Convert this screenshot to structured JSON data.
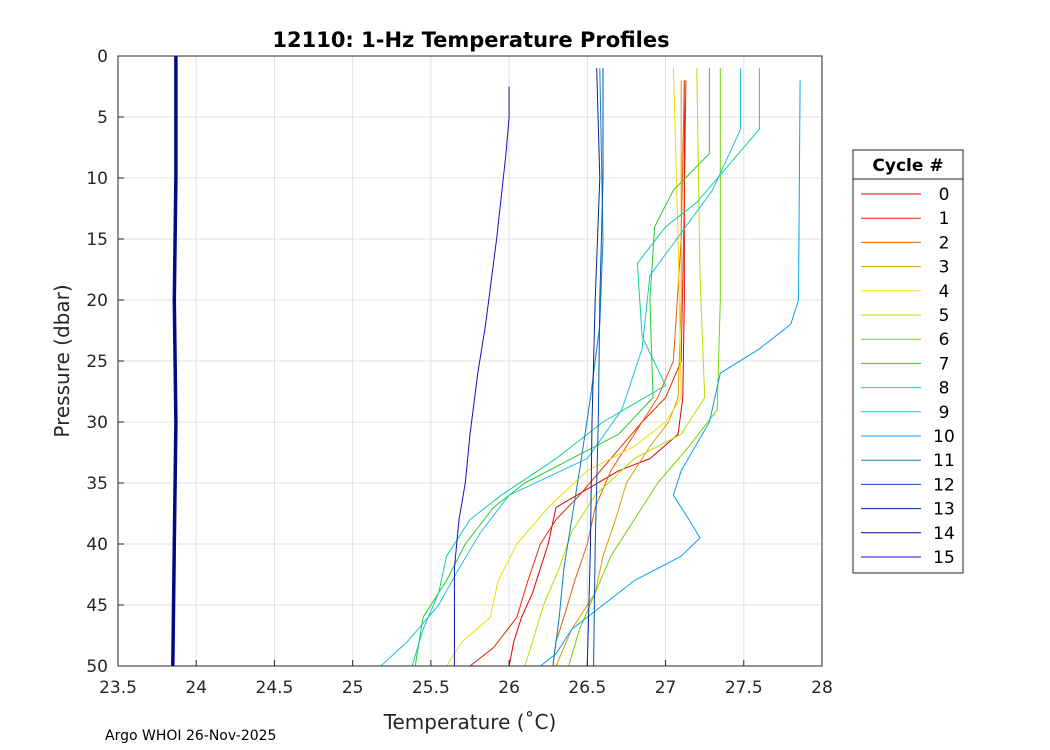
{
  "chart_data": {
    "type": "line",
    "title": "12110: 1-Hz Temperature Profiles",
    "xlabel": "Temperature (˚C)",
    "ylabel": "Pressure (dbar)",
    "xlim": [
      23.5,
      28
    ],
    "ylim": [
      0,
      50
    ],
    "y_reversed": true,
    "grid": true,
    "x_ticks": [
      "23.5",
      "24",
      "24.5",
      "25",
      "25.5",
      "26",
      "26.5",
      "27",
      "27.5",
      "28"
    ],
    "y_ticks": [
      "0",
      "5",
      "10",
      "15",
      "20",
      "25",
      "30",
      "35",
      "40",
      "45",
      "50"
    ],
    "legend": {
      "title": "Cycle #",
      "placement": "right",
      "entries": [
        "0",
        "1",
        "2",
        "3",
        "4",
        "5",
        "6",
        "7",
        "8",
        "9",
        "10",
        "11",
        "12",
        "13",
        "14",
        "15"
      ]
    },
    "credit": "Argo WHOI 26-Nov-2025",
    "series": [
      {
        "name": "0",
        "color": "#dd0000",
        "points": [
          [
            27.12,
            2
          ],
          [
            27.12,
            10
          ],
          [
            27.12,
            20
          ],
          [
            27.11,
            28
          ],
          [
            27.08,
            31
          ],
          [
            26.9,
            33
          ],
          [
            26.7,
            34
          ],
          [
            26.5,
            35.5
          ],
          [
            26.3,
            37
          ],
          [
            26.25,
            40
          ],
          [
            26.2,
            42
          ],
          [
            26.15,
            44
          ],
          [
            26.08,
            46
          ],
          [
            26.03,
            48
          ],
          [
            26.0,
            50
          ]
        ]
      },
      {
        "name": "1",
        "color": "#e02d00",
        "points": [
          [
            27.13,
            2
          ],
          [
            27.12,
            12
          ],
          [
            27.1,
            25
          ],
          [
            27.0,
            28
          ],
          [
            26.85,
            30
          ],
          [
            26.65,
            33
          ],
          [
            26.45,
            36
          ],
          [
            26.3,
            38
          ],
          [
            26.2,
            40
          ],
          [
            26.12,
            43
          ],
          [
            26.05,
            46
          ],
          [
            25.9,
            48.5
          ],
          [
            25.75,
            50
          ]
        ]
      },
      {
        "name": "2",
        "color": "#e35f00",
        "points": [
          [
            27.12,
            2
          ],
          [
            27.1,
            15
          ],
          [
            27.05,
            25
          ],
          [
            26.95,
            28
          ],
          [
            26.8,
            31
          ],
          [
            26.65,
            34
          ],
          [
            26.55,
            37
          ],
          [
            26.5,
            40
          ],
          [
            26.42,
            43
          ],
          [
            26.35,
            46
          ],
          [
            26.3,
            48
          ],
          [
            26.28,
            50
          ]
        ]
      },
      {
        "name": "3",
        "color": "#e79a00",
        "points": [
          [
            27.1,
            2
          ],
          [
            27.1,
            20
          ],
          [
            27.08,
            28
          ],
          [
            27.02,
            30
          ],
          [
            26.9,
            32
          ],
          [
            26.75,
            35
          ],
          [
            26.68,
            38
          ],
          [
            26.6,
            41
          ],
          [
            26.55,
            44
          ],
          [
            26.4,
            47
          ],
          [
            26.3,
            50
          ]
        ]
      },
      {
        "name": "4",
        "color": "#eedd00",
        "points": [
          [
            27.05,
            1
          ],
          [
            27.08,
            15
          ],
          [
            27.1,
            28
          ],
          [
            27.0,
            30
          ],
          [
            26.8,
            32
          ],
          [
            26.5,
            34
          ],
          [
            26.25,
            37
          ],
          [
            26.05,
            40
          ],
          [
            25.93,
            43
          ],
          [
            25.88,
            46
          ],
          [
            25.7,
            48
          ],
          [
            25.6,
            50
          ]
        ]
      },
      {
        "name": "5",
        "color": "#b5e000",
        "points": [
          [
            27.2,
            1
          ],
          [
            27.22,
            18
          ],
          [
            27.25,
            28
          ],
          [
            27.1,
            31
          ],
          [
            26.8,
            33
          ],
          [
            26.55,
            36
          ],
          [
            26.4,
            39
          ],
          [
            26.32,
            42
          ],
          [
            26.22,
            45
          ],
          [
            26.15,
            48
          ],
          [
            26.1,
            50
          ]
        ]
      },
      {
        "name": "6",
        "color": "#6ed800",
        "points": [
          [
            27.35,
            1
          ],
          [
            27.35,
            20
          ],
          [
            27.33,
            29
          ],
          [
            27.15,
            32
          ],
          [
            26.95,
            35
          ],
          [
            26.8,
            38
          ],
          [
            26.65,
            41
          ],
          [
            26.55,
            44
          ],
          [
            26.45,
            47
          ],
          [
            26.38,
            50
          ]
        ]
      },
      {
        "name": "7",
        "color": "#25cc30",
        "points": [
          [
            27.28,
            1
          ],
          [
            27.28,
            8
          ],
          [
            27.05,
            11
          ],
          [
            26.93,
            14
          ],
          [
            26.9,
            20
          ],
          [
            26.92,
            28
          ],
          [
            26.7,
            31
          ],
          [
            26.4,
            33
          ],
          [
            26.1,
            35
          ],
          [
            25.9,
            37
          ],
          [
            25.72,
            40
          ],
          [
            25.6,
            43
          ],
          [
            25.45,
            46
          ],
          [
            25.4,
            50
          ]
        ]
      },
      {
        "name": "8",
        "color": "#10d0a0",
        "points": [
          [
            27.6,
            1
          ],
          [
            27.6,
            6
          ],
          [
            27.4,
            9
          ],
          [
            27.2,
            12
          ],
          [
            27.0,
            14
          ],
          [
            26.82,
            17
          ],
          [
            26.85,
            23
          ],
          [
            27.0,
            27
          ],
          [
            26.6,
            30
          ],
          [
            26.3,
            33
          ],
          [
            25.95,
            36
          ],
          [
            25.75,
            38
          ],
          [
            25.6,
            41
          ],
          [
            25.55,
            44
          ],
          [
            25.45,
            47
          ],
          [
            25.38,
            50
          ]
        ]
      },
      {
        "name": "9",
        "color": "#20c0e0",
        "points": [
          [
            27.48,
            1
          ],
          [
            27.48,
            6
          ],
          [
            27.3,
            11
          ],
          [
            26.9,
            18
          ],
          [
            26.85,
            24
          ],
          [
            26.72,
            29
          ],
          [
            26.5,
            33
          ],
          [
            26.0,
            36
          ],
          [
            25.82,
            39
          ],
          [
            25.68,
            42
          ],
          [
            25.55,
            45
          ],
          [
            25.35,
            48
          ],
          [
            25.18,
            50
          ]
        ]
      },
      {
        "name": "10",
        "color": "#0aa0e8",
        "points": [
          [
            27.86,
            2
          ],
          [
            27.85,
            20
          ],
          [
            27.8,
            22
          ],
          [
            27.6,
            24
          ],
          [
            27.35,
            26
          ],
          [
            27.28,
            30
          ],
          [
            27.1,
            34
          ],
          [
            27.05,
            36
          ],
          [
            27.15,
            38
          ],
          [
            27.22,
            39.5
          ],
          [
            27.1,
            41
          ],
          [
            26.8,
            43
          ],
          [
            26.6,
            45
          ],
          [
            26.4,
            47
          ],
          [
            26.3,
            49
          ],
          [
            26.2,
            50
          ]
        ]
      },
      {
        "name": "11",
        "color": "#0a80c0",
        "points": [
          [
            26.58,
            1
          ],
          [
            26.6,
            15
          ],
          [
            26.58,
            22
          ],
          [
            26.52,
            28
          ],
          [
            26.45,
            34
          ],
          [
            26.4,
            38
          ],
          [
            26.35,
            42
          ],
          [
            26.32,
            46
          ],
          [
            26.28,
            50
          ]
        ]
      },
      {
        "name": "12",
        "color": "#0050b0",
        "points": [
          [
            26.6,
            1
          ],
          [
            26.6,
            10
          ],
          [
            26.58,
            20
          ],
          [
            26.57,
            30
          ],
          [
            26.55,
            40
          ],
          [
            26.54,
            50
          ]
        ]
      },
      {
        "name": "13",
        "color": "#002a90",
        "points": [
          [
            26.56,
            1
          ],
          [
            26.58,
            10
          ],
          [
            26.55,
            20
          ],
          [
            26.53,
            30
          ],
          [
            26.52,
            40
          ],
          [
            26.5,
            50
          ]
        ]
      },
      {
        "name": "14",
        "color": "#000a88",
        "points": [
          [
            23.87,
            0
          ],
          [
            23.87,
            10
          ],
          [
            23.86,
            20
          ],
          [
            23.87,
            30
          ],
          [
            23.86,
            40
          ],
          [
            23.85,
            50
          ]
        ]
      },
      {
        "name": "15",
        "color": "#1010c8",
        "points": [
          [
            26.0,
            2.5
          ],
          [
            26.0,
            5
          ],
          [
            25.98,
            8
          ],
          [
            25.92,
            15
          ],
          [
            25.85,
            22
          ],
          [
            25.8,
            26
          ],
          [
            25.75,
            31
          ],
          [
            25.72,
            35
          ],
          [
            25.68,
            38
          ],
          [
            25.65,
            42
          ],
          [
            25.65,
            50
          ]
        ]
      }
    ]
  }
}
